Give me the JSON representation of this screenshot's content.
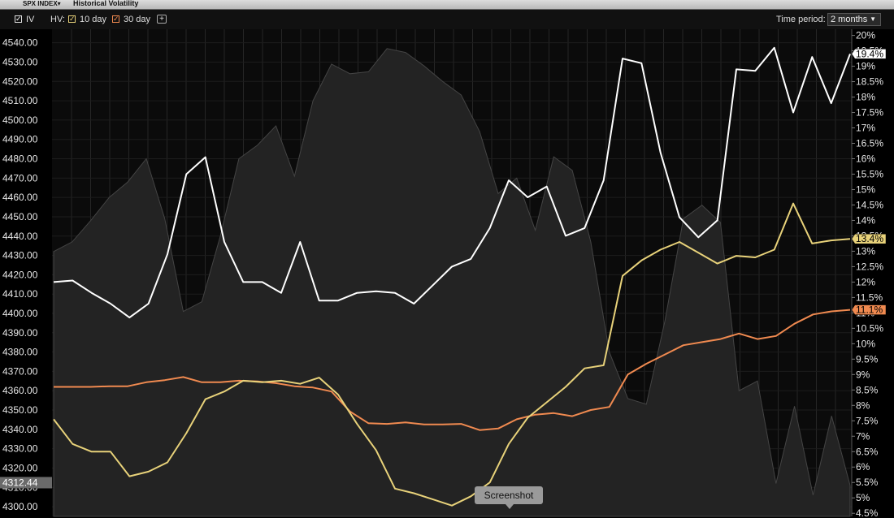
{
  "window": {
    "symbol": "SPX INDEX▾",
    "title": "Historical Volatility"
  },
  "toolbar": {
    "iv_label": "IV",
    "hv_label": "HV:",
    "hv10_label": "10 day",
    "hv30_label": "30 day",
    "add_label": "+",
    "time_period_label": "Time period:",
    "time_period_value": "2 months"
  },
  "tooltip": {
    "text": "Screenshot"
  },
  "chart_data": {
    "type": "line",
    "price_axis": {
      "range": [
        4295,
        4547
      ],
      "ticks": [
        "4300.00",
        "4310.00",
        "4320.00",
        "4330.00",
        "4340.00",
        "4350.00",
        "4360.00",
        "4370.00",
        "4380.00",
        "4390.00",
        "4400.00",
        "4410.00",
        "4420.00",
        "4430.00",
        "4440.00",
        "4450.00",
        "4460.00",
        "4470.00",
        "4480.00",
        "4490.00",
        "4500.00",
        "4510.00",
        "4520.00",
        "4530.00",
        "4540.00"
      ],
      "current_label": "4312.44",
      "current_value": 4312.44
    },
    "vol_axis": {
      "range": [
        4.4,
        20.2
      ],
      "ticks": [
        "4.5%",
        "5%",
        "5.5%",
        "6%",
        "6.5%",
        "7%",
        "7.5%",
        "8%",
        "8.5%",
        "9%",
        "9.5%",
        "10%",
        "10.5%",
        "11%",
        "11.5%",
        "12%",
        "12.5%",
        "13%",
        "13.5%",
        "14%",
        "14.5%",
        "15%",
        "15.5%",
        "16%",
        "16.5%",
        "17%",
        "17.5%",
        "18%",
        "18.5%",
        "19%",
        "19.5%",
        "20%"
      ]
    },
    "price_series": {
      "values": [
        4432,
        4437,
        4448,
        4460,
        4468,
        4480,
        4449,
        4401,
        4406,
        4440,
        4480,
        4487,
        4497,
        4471,
        4510,
        4529,
        4524,
        4525,
        4537,
        4535,
        4528,
        4520,
        4513,
        4494,
        4462,
        4470,
        4443,
        4481,
        4474,
        4437,
        4380,
        4356,
        4353,
        4396,
        4449,
        4456,
        4447,
        4360,
        4365,
        4312,
        4352,
        4306,
        4347,
        4311
      ]
    },
    "series": [
      {
        "name": "IV",
        "color": "#ffffff",
        "last_label": "19.4%",
        "values": [
          12.0,
          12.05,
          11.65,
          11.3,
          10.85,
          11.3,
          12.9,
          15.5,
          16.05,
          13.3,
          12.0,
          12.0,
          11.65,
          13.3,
          11.4,
          11.4,
          11.65,
          11.7,
          11.65,
          11.3,
          11.9,
          12.5,
          12.75,
          13.75,
          15.3,
          14.75,
          15.1,
          13.5,
          13.75,
          15.3,
          19.25,
          19.1,
          16.2,
          14.1,
          13.45,
          14.0,
          18.9,
          18.85,
          19.6,
          17.5,
          19.3,
          17.8,
          19.4
        ]
      },
      {
        "name": "10 day",
        "color": "#e8d27a",
        "last_label": "13.4%",
        "values": [
          7.55,
          6.75,
          6.5,
          6.5,
          5.7,
          5.85,
          6.15,
          7.1,
          8.2,
          8.45,
          8.8,
          8.75,
          8.8,
          8.7,
          8.9,
          8.35,
          7.4,
          6.55,
          5.3,
          5.15,
          4.95,
          4.75,
          5.05,
          5.5,
          6.75,
          7.6,
          8.1,
          8.6,
          9.2,
          9.3,
          12.2,
          12.7,
          13.05,
          13.3,
          12.95,
          12.6,
          12.85,
          12.8,
          13.05,
          14.55,
          13.25,
          13.35,
          13.4
        ]
      },
      {
        "name": "30 day",
        "color": "#f08a50",
        "last_label": "11.1%",
        "values": [
          8.6,
          8.6,
          8.6,
          8.62,
          8.62,
          8.75,
          8.82,
          8.92,
          8.75,
          8.75,
          8.8,
          8.78,
          8.72,
          8.62,
          8.58,
          8.45,
          7.8,
          7.42,
          7.4,
          7.45,
          7.38,
          7.38,
          7.4,
          7.2,
          7.25,
          7.55,
          7.7,
          7.75,
          7.65,
          7.85,
          7.95,
          9.0,
          9.35,
          9.65,
          9.95,
          10.05,
          10.15,
          10.33,
          10.15,
          10.25,
          10.65,
          10.95,
          11.05,
          11.1
        ]
      }
    ]
  }
}
